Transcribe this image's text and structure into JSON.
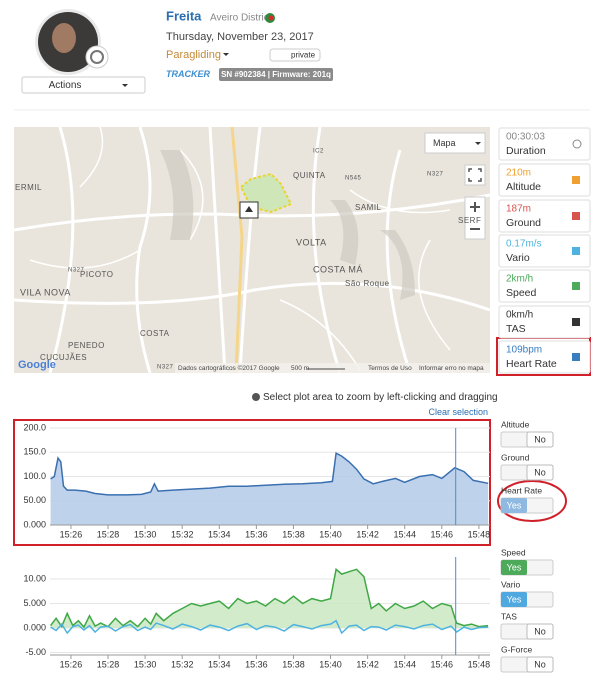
{
  "header": {
    "name": "Freita",
    "location": "Aveiro District",
    "date": "Thursday, November 23, 2017",
    "activity": "Paragliding",
    "privacy": "private",
    "tracker": "TRACKER",
    "device": "SN #902384 | Firmware: 201q",
    "actions": "Actions"
  },
  "map": {
    "type_button": "Mapa",
    "logo": "Google",
    "places": [
      "QUINTA",
      "SAMIL",
      "VOLTA",
      "COSTA MÁ",
      "São Roque",
      "VILA NOVA",
      "PICOTO",
      "PENEDO",
      "CUCUJÃES",
      "COSTA",
      "SERF",
      "ERMIL",
      "N545",
      "N327",
      "IC2",
      "N327",
      "N327"
    ],
    "footer": [
      "Dados cartográficos ©2017 Google",
      "500 m",
      "Termos de Uso",
      "Informar erro no mapa"
    ]
  },
  "stats": [
    {
      "value": "00:30:03",
      "label": "Duration",
      "color": "#888888"
    },
    {
      "value": "210m",
      "label": "Altitude",
      "color": "#f0a030"
    },
    {
      "value": "187m",
      "label": "Ground",
      "color": "#d9534f"
    },
    {
      "value": "0.17m/s",
      "label": "Vario",
      "color": "#4fb3e0"
    },
    {
      "value": "2km/h",
      "label": "Speed",
      "color": "#4caa5a"
    },
    {
      "value": "0km/h",
      "label": "TAS",
      "color": "#333333"
    },
    {
      "value": "109bpm",
      "label": "Heart Rate",
      "color": "#3a7cc0"
    }
  ],
  "hint": "Select plot area to zoom by left-clicking and dragging",
  "clear_selection": "Clear selection",
  "toggles": [
    {
      "name": "Altitude",
      "state": "No"
    },
    {
      "name": "Ground",
      "state": "No"
    },
    {
      "name": "Heart Rate",
      "state": "Yes",
      "color": "#8fb9e0"
    },
    {
      "name": "Speed",
      "state": "Yes",
      "color": "#4caa5a"
    },
    {
      "name": "Vario",
      "state": "Yes",
      "color": "#4fa8e0"
    },
    {
      "name": "TAS",
      "state": "No"
    },
    {
      "name": "G-Force",
      "state": "No"
    }
  ],
  "chart_data": [
    {
      "type": "area",
      "series": [
        {
          "name": "Heart Rate",
          "color": "#3a6fb0",
          "fill": "#b3cbe8",
          "x": [
            924.9,
            925.1,
            925.3,
            925.45,
            925.6,
            925.8,
            926.2,
            926.8,
            927.3,
            928,
            929,
            929.8,
            930.3,
            930.5,
            930.7,
            931.5,
            932.5,
            933.5,
            934.5,
            935.5,
            936.5,
            937.5,
            938.5,
            939.5,
            940.1,
            940.3,
            940.6,
            941,
            941.4,
            941.8,
            942.3,
            942.8,
            943.5,
            944,
            944.8,
            945.5,
            946,
            946.7,
            947.2,
            947.7,
            948.5
          ],
          "values": [
            95,
            100,
            138,
            130,
            80,
            72,
            72,
            70,
            65,
            62,
            62,
            63,
            68,
            85,
            70,
            72,
            74,
            76,
            80,
            80,
            82,
            84,
            85,
            87,
            90,
            148,
            142,
            130,
            115,
            95,
            85,
            90,
            96,
            88,
            100,
            104,
            96,
            118,
            110,
            92,
            86
          ]
        }
      ],
      "xlim": [
        924.87,
        948.6
      ],
      "ylim": [
        0,
        200
      ],
      "yticks": [
        {
          "value": 0,
          "label": "0.000"
        },
        {
          "value": 50,
          "label": "50.00"
        },
        {
          "value": 100,
          "label": "100.0"
        },
        {
          "value": 150,
          "label": "150.0"
        },
        {
          "value": 200,
          "label": "200.0"
        }
      ],
      "xticks": [
        {
          "value": 926,
          "label": "15:26"
        },
        {
          "value": 928,
          "label": "15:28"
        },
        {
          "value": 930,
          "label": "15:30"
        },
        {
          "value": 932,
          "label": "15:32"
        },
        {
          "value": 934,
          "label": "15:34"
        },
        {
          "value": 936,
          "label": "15:36"
        },
        {
          "value": 938,
          "label": "15:38"
        },
        {
          "value": 940,
          "label": "15:40"
        },
        {
          "value": 942,
          "label": "15:42"
        },
        {
          "value": 944,
          "label": "15:44"
        },
        {
          "value": 946,
          "label": "15:46"
        },
        {
          "value": 948,
          "label": "15:48"
        }
      ],
      "cursor": 946.75,
      "grid": true
    },
    {
      "type": "line",
      "series": [
        {
          "name": "Speed",
          "color": "#3fa845",
          "fill": "#c9e7c2",
          "x": [
            924.9,
            925.2,
            925.5,
            925.8,
            926.1,
            926.4,
            926.7,
            927,
            927.3,
            927.6,
            928,
            928.4,
            928.8,
            929.2,
            929.6,
            930,
            930.3,
            930.6,
            931,
            931.5,
            932,
            932.5,
            933,
            933.5,
            934,
            934.5,
            935,
            935.5,
            936,
            936.5,
            937,
            937.5,
            938,
            938.5,
            939,
            939.5,
            940,
            940.3,
            940.6,
            941,
            941.4,
            941.8,
            942.2,
            942.6,
            943,
            943.5,
            944,
            944.5,
            945,
            945.5,
            946,
            946.5,
            946.8,
            947.2,
            947.6,
            948,
            948.5
          ],
          "values": [
            0.5,
            2,
            0.3,
            3,
            0.5,
            1.5,
            0.2,
            2.5,
            0.4,
            1,
            0.3,
            2,
            0.5,
            1.5,
            0.3,
            2,
            0.8,
            3,
            1.5,
            3,
            4,
            5,
            4.5,
            5,
            5.5,
            4,
            6,
            5,
            5.5,
            4.5,
            6,
            5,
            6.5,
            5,
            6,
            5.5,
            6,
            12,
            11,
            11.5,
            12,
            10.5,
            4,
            5,
            3.5,
            5,
            4,
            4.5,
            5.5,
            4,
            5,
            4.5,
            1,
            0.5,
            0.8,
            0.3,
            0.5
          ]
        },
        {
          "name": "Vario",
          "color": "#4fb3e0",
          "x": [
            924.9,
            925.2,
            925.5,
            925.8,
            926.1,
            926.4,
            926.7,
            927,
            927.3,
            927.6,
            928,
            928.4,
            928.8,
            929.2,
            929.6,
            930,
            930.3,
            930.6,
            931,
            931.5,
            932,
            932.5,
            933,
            933.5,
            934,
            934.5,
            935,
            935.5,
            936,
            936.5,
            937,
            937.5,
            938,
            938.5,
            939,
            939.5,
            940,
            940.3,
            940.6,
            941,
            941.4,
            941.8,
            942.2,
            942.6,
            943,
            943.5,
            944,
            944.5,
            945,
            945.5,
            946,
            946.5,
            946.8,
            947.2,
            947.6,
            948,
            948.5
          ],
          "values": [
            0.2,
            -0.5,
            0.8,
            -1,
            0.3,
            0.6,
            -0.4,
            0.5,
            -0.8,
            0.2,
            0.4,
            -0.6,
            0.3,
            0.7,
            -0.5,
            0.2,
            -0.3,
            1,
            0.5,
            -0.2,
            0.8,
            0.3,
            -0.4,
            0.6,
            0.2,
            -0.5,
            0.4,
            0.9,
            -0.3,
            0.5,
            0.2,
            -0.6,
            0.7,
            0.3,
            -0.2,
            0.5,
            0.8,
            1.5,
            -1,
            0.4,
            0.6,
            -0.5,
            0.3,
            0.2,
            -0.4,
            0.6,
            0.3,
            -0.2,
            0.5,
            0.8,
            -0.3,
            0.4,
            -0.8,
            0.2,
            -0.3,
            0.1,
            0.2
          ]
        }
      ],
      "xlim": [
        924.87,
        948.6
      ],
      "ylim": [
        -5.5,
        14.5
      ],
      "yticks": [
        {
          "value": -5,
          "label": "-5.00"
        },
        {
          "value": 0,
          "label": "0.000"
        },
        {
          "value": 5,
          "label": "5.000"
        },
        {
          "value": 10,
          "label": "10.00"
        }
      ],
      "xticks": [
        {
          "value": 926,
          "label": "15:26"
        },
        {
          "value": 928,
          "label": "15:28"
        },
        {
          "value": 930,
          "label": "15:30"
        },
        {
          "value": 932,
          "label": "15:32"
        },
        {
          "value": 934,
          "label": "15:34"
        },
        {
          "value": 936,
          "label": "15:36"
        },
        {
          "value": 938,
          "label": "15:38"
        },
        {
          "value": 940,
          "label": "15:40"
        },
        {
          "value": 942,
          "label": "15:42"
        },
        {
          "value": 944,
          "label": "15:44"
        },
        {
          "value": 946,
          "label": "15:46"
        },
        {
          "value": 948,
          "label": "15:48"
        }
      ],
      "cursor": 946.75,
      "grid": true
    }
  ]
}
